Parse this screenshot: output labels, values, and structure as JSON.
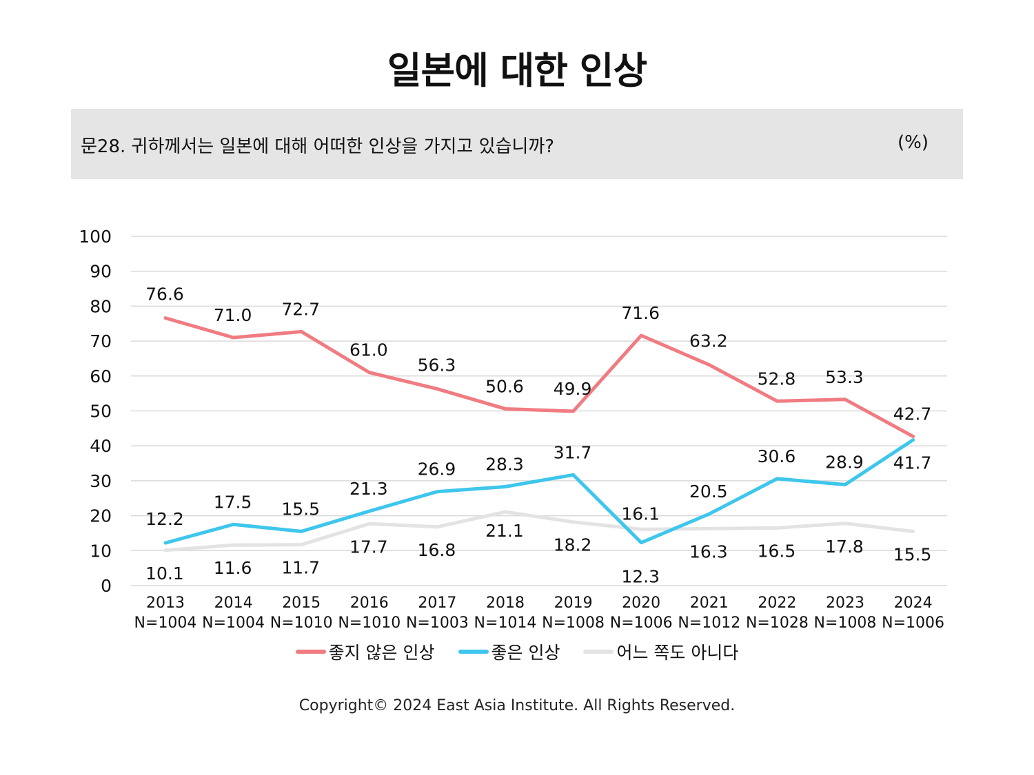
{
  "title": "일본에 대한 인상",
  "question": "문28. 귀하께서는 일본에 대해 어떠한 인상을 가지고 있습니까?",
  "unit": "(%)",
  "copyright": "Copyright© 2024 East Asia Institute. All Rights Reserved.",
  "colors": {
    "negative": "#f07c82",
    "positive": "#3ec6ec",
    "neutral": "#e3e3e3",
    "grid": "#d9d9d9",
    "question_bg": "#e6e5e6"
  },
  "chart_data": {
    "type": "line",
    "ylim": [
      0,
      100
    ],
    "yticks": [
      "0",
      "10",
      "20",
      "30",
      "40",
      "50",
      "60",
      "70",
      "80",
      "90",
      "100"
    ],
    "categories": [
      "2013",
      "2014",
      "2015",
      "2016",
      "2017",
      "2018",
      "2019",
      "2020",
      "2021",
      "2022",
      "2023",
      "2024"
    ],
    "sample_sizes": [
      "N=1004",
      "N=1004",
      "N=1010",
      "N=1010",
      "N=1003",
      "N=1014",
      "N=1008",
      "N=1006",
      "N=1012",
      "N=1028",
      "N=1008",
      "N=1006"
    ],
    "grid": true,
    "legend_position": "bottom",
    "series": [
      {
        "name": "좋지 않은 인상",
        "color": "#f07c82",
        "values": [
          76.6,
          71.0,
          72.7,
          61.0,
          56.3,
          50.6,
          49.9,
          71.6,
          63.2,
          52.8,
          53.3,
          42.7
        ],
        "labels": [
          "76.6",
          "71.0",
          "72.7",
          "61.0",
          "56.3",
          "50.6",
          "49.9",
          "71.6",
          "63.2",
          "52.8",
          "53.3",
          "42.7"
        ]
      },
      {
        "name": "좋은 인상",
        "color": "#3ec6ec",
        "values": [
          12.2,
          17.5,
          15.5,
          21.3,
          26.9,
          28.3,
          31.7,
          12.3,
          20.5,
          30.6,
          28.9,
          41.7
        ],
        "labels": [
          "12.2",
          "17.5",
          "15.5",
          "21.3",
          "26.9",
          "28.3",
          "31.7",
          "12.3",
          "20.5",
          "30.6",
          "28.9",
          "41.7"
        ]
      },
      {
        "name": "어느 쪽도 아니다",
        "color": "#e3e3e3",
        "values": [
          10.1,
          11.6,
          11.7,
          17.7,
          16.8,
          21.1,
          18.2,
          16.1,
          16.3,
          16.5,
          17.8,
          15.5
        ],
        "labels": [
          "10.1",
          "11.6",
          "11.7",
          "17.7",
          "16.8",
          "21.1",
          "18.2",
          "16.1",
          "16.3",
          "16.5",
          "17.8",
          "15.5"
        ]
      }
    ]
  }
}
